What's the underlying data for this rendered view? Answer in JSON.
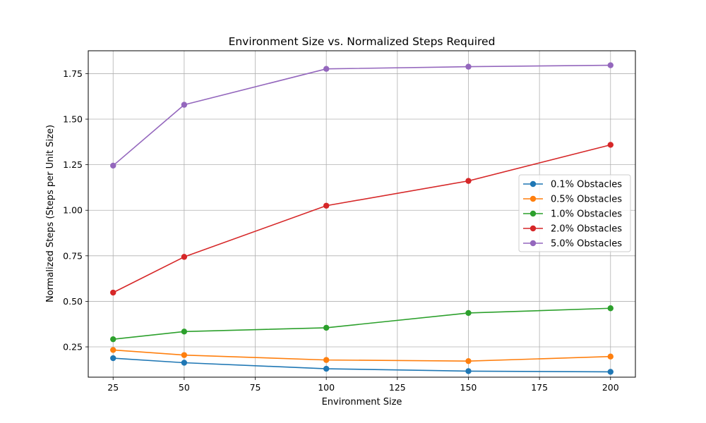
{
  "chart_data": {
    "type": "line",
    "title": "Environment Size vs. Normalized Steps Required",
    "xlabel": "Environment Size",
    "ylabel": "Normalized Steps (Steps per Unit Size)",
    "x": [
      25,
      50,
      100,
      150,
      200
    ],
    "xlim": [
      16.25,
      208.75
    ],
    "ylim": [
      0.0837,
      1.8755
    ],
    "xticks": [
      25,
      50,
      75,
      100,
      125,
      150,
      175,
      200
    ],
    "yticks": [
      0.25,
      0.5,
      0.75,
      1.0,
      1.25,
      1.5,
      1.75
    ],
    "ytick_labels": [
      "0.25",
      "0.50",
      "0.75",
      "1.00",
      "1.25",
      "1.50",
      "1.75"
    ],
    "grid": true,
    "legend_position": "center-right",
    "series": [
      {
        "name": "0.1% Obstacles",
        "color": "#1f77b4",
        "values": [
          0.188,
          0.163,
          0.13,
          0.117,
          0.113
        ]
      },
      {
        "name": "0.5% Obstacles",
        "color": "#ff7f0e",
        "values": [
          0.233,
          0.205,
          0.178,
          0.172,
          0.197
        ]
      },
      {
        "name": "1.0% Obstacles",
        "color": "#2ca02c",
        "values": [
          0.292,
          0.334,
          0.355,
          0.436,
          0.462
        ]
      },
      {
        "name": "2.0% Obstacles",
        "color": "#d62728",
        "values": [
          0.548,
          0.744,
          1.025,
          1.161,
          1.359
        ]
      },
      {
        "name": "5.0% Obstacles",
        "color": "#9467bd",
        "values": [
          1.245,
          1.579,
          1.776,
          1.788,
          1.796
        ]
      }
    ]
  }
}
